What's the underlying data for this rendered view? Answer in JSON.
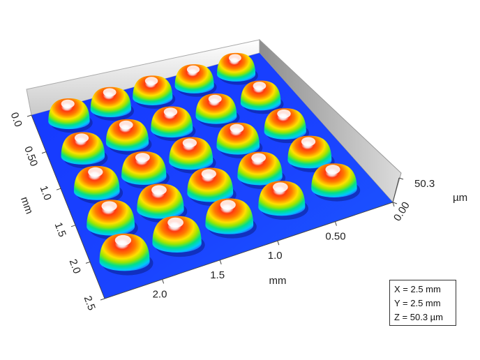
{
  "surface": {
    "grid": {
      "rows": 5,
      "cols": 5
    },
    "dome_colormap": [
      "#2b2bff",
      "#00c8ff",
      "#00e08a",
      "#9ae600",
      "#ffe000",
      "#ff8a00",
      "#ff3000",
      "#ffffff"
    ],
    "background_color": "#1a3dff"
  },
  "axes": {
    "y_axis": {
      "title": "mm",
      "ticks": [
        "0.0",
        "0.50",
        "1.0",
        "1.5",
        "2.0",
        "2.5"
      ]
    },
    "x_axis": {
      "title": "mm",
      "ticks": [
        "2.0",
        "1.5",
        "1.0",
        "0.50",
        "0.00"
      ]
    },
    "z_axis": {
      "unit": "µm",
      "ticks": [
        "0.00",
        "50.3"
      ]
    }
  },
  "info": {
    "x_line": "X = 2.5 mm",
    "y_line": "Y = 2.5 mm",
    "z_line": "Z = 50.3 µm"
  }
}
